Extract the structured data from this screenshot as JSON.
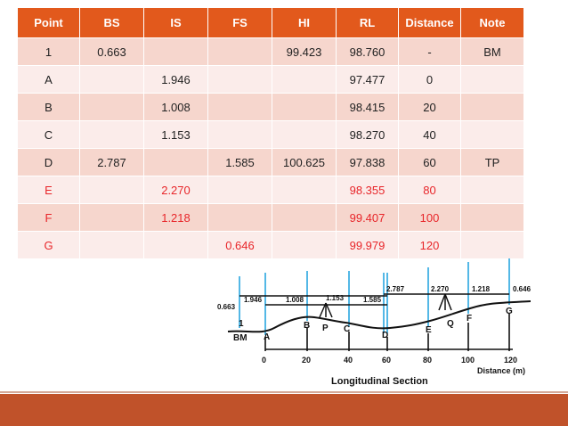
{
  "table": {
    "columns": [
      "Point",
      "BS",
      "IS",
      "FS",
      "HI",
      "RL",
      "Distance",
      "Note"
    ],
    "rows": [
      {
        "cells": [
          "1",
          "0.663",
          "",
          "",
          "99.423",
          "98.760",
          "-",
          "BM"
        ],
        "color": "black"
      },
      {
        "cells": [
          "A",
          "",
          "1.946",
          "",
          "",
          "97.477",
          "0",
          ""
        ],
        "color": "black"
      },
      {
        "cells": [
          "B",
          "",
          "1.008",
          "",
          "",
          "98.415",
          "20",
          ""
        ],
        "color": "black"
      },
      {
        "cells": [
          "C",
          "",
          "1.153",
          "",
          "",
          "98.270",
          "40",
          ""
        ],
        "color": "black"
      },
      {
        "cells": [
          "D",
          "2.787",
          "",
          "1.585",
          "100.625",
          "97.838",
          "60",
          "TP"
        ],
        "color": "black"
      },
      {
        "cells": [
          "E",
          "",
          "2.270",
          "",
          "",
          "98.355",
          "80",
          ""
        ],
        "color": "red"
      },
      {
        "cells": [
          "F",
          "",
          "1.218",
          "",
          "",
          "99.407",
          "100",
          ""
        ],
        "color": "red"
      },
      {
        "cells": [
          "G",
          "",
          "",
          "0.646",
          "",
          "99.979",
          "120",
          ""
        ],
        "color": "red"
      }
    ]
  },
  "diagram": {
    "title": "Longitudinal Section",
    "axis_label": "Distance (m)",
    "staff_readings": [
      "0.663",
      "1.946",
      "1.008",
      "1.153",
      "1.585",
      "2.787",
      "2.270",
      "1.218",
      "0.646"
    ],
    "point_labels": [
      "1",
      "BM",
      "A",
      "B",
      "P",
      "C",
      "D",
      "E",
      "Q",
      "F",
      "G"
    ],
    "distance_ticks": [
      "0",
      "20",
      "40",
      "60",
      "80",
      "100",
      "120"
    ]
  },
  "colors": {
    "header": "#e2591c",
    "row_odd": "#f6d6cd",
    "row_even": "#fbecea",
    "red_text": "#e8262a",
    "footer": "#c0522a",
    "staff_blue": "#29a7e0"
  }
}
